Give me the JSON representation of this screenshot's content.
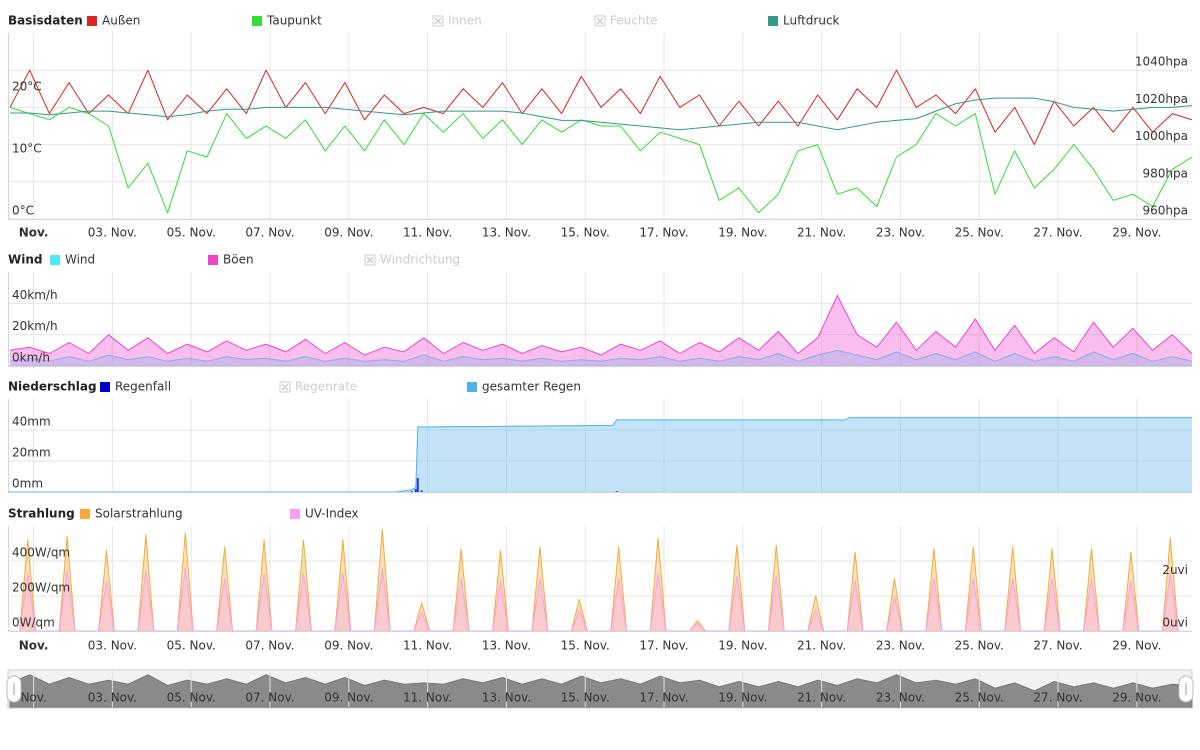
{
  "chart_data": [
    {
      "type": "line",
      "title": "Basisdaten",
      "x": [
        0.4,
        0.9,
        1.4,
        1.9,
        2.4,
        2.9,
        3.4,
        3.9,
        4.4,
        4.9,
        5.4,
        5.9,
        6.4,
        6.9,
        7.4,
        7.9,
        8.4,
        8.9,
        9.4,
        9.9,
        10.4,
        10.9,
        11.4,
        11.9,
        12.4,
        12.9,
        13.4,
        13.9,
        14.4,
        14.9,
        15.4,
        15.9,
        16.4,
        16.9,
        17.4,
        17.9,
        18.4,
        18.9,
        19.4,
        19.9,
        20.4,
        20.9,
        21.4,
        21.9,
        22.4,
        22.9,
        23.4,
        23.9,
        24.4,
        24.9,
        25.4,
        25.9,
        26.4,
        26.9,
        27.4,
        27.9,
        28.4,
        28.9,
        29.4,
        29.9,
        30.4
      ],
      "xlim": [
        0.35,
        30.4
      ],
      "xticks": [
        {
          "value": 1,
          "label": "Nov."
        },
        {
          "value": 3,
          "label": "03. Nov."
        },
        {
          "value": 5,
          "label": "05. Nov."
        },
        {
          "value": 7,
          "label": "07. Nov."
        },
        {
          "value": 9,
          "label": "09. Nov."
        },
        {
          "value": 11,
          "label": "11. Nov."
        },
        {
          "value": 13,
          "label": "13. Nov."
        },
        {
          "value": 15,
          "label": "15. Nov."
        },
        {
          "value": 17,
          "label": "17. Nov."
        },
        {
          "value": 19,
          "label": "19. Nov."
        },
        {
          "value": 21,
          "label": "21. Nov."
        },
        {
          "value": 23,
          "label": "23. Nov."
        },
        {
          "value": 25,
          "label": "25. Nov."
        },
        {
          "value": 27,
          "label": "27. Nov."
        },
        {
          "value": 29,
          "label": "29. Nov."
        }
      ],
      "ylim": [
        0,
        30
      ],
      "yticks": [
        {
          "value": 0,
          "label": "0°C"
        },
        {
          "value": 10,
          "label": "10°C"
        },
        {
          "value": 20,
          "label": "20°C"
        }
      ],
      "y2lim": [
        960,
        1060
      ],
      "y2ticks": [
        {
          "value": 960,
          "label": "960hpa"
        },
        {
          "value": 980,
          "label": "980hpa"
        },
        {
          "value": 1000,
          "label": "1000hpa"
        },
        {
          "value": 1020,
          "label": "1020hpa"
        },
        {
          "value": 1040,
          "label": "1040hpa"
        }
      ],
      "grid": "y2",
      "series": [
        {
          "name": "Außen",
          "color": "#dd2222",
          "values": [
            18,
            24,
            17,
            22,
            17,
            20,
            17,
            24,
            16,
            20,
            17,
            21,
            17,
            24,
            18,
            22,
            17,
            22,
            16,
            20,
            17,
            18,
            17,
            21,
            18,
            22,
            17,
            21,
            17,
            23,
            18,
            21,
            17,
            23,
            18,
            20,
            15,
            19,
            15,
            19,
            15,
            20,
            16,
            21,
            18,
            24,
            18,
            20,
            17,
            21,
            14,
            18,
            12,
            19,
            15,
            18,
            14,
            18,
            14,
            17,
            16
          ]
        },
        {
          "name": "Taupunkt",
          "color": "#33dd33",
          "values": [
            18,
            17,
            16,
            18,
            17,
            15,
            5,
            9,
            1,
            11,
            10,
            17,
            13,
            15,
            13,
            16,
            11,
            15,
            11,
            16,
            12,
            17,
            14,
            17,
            13,
            16,
            12,
            16,
            14,
            16,
            15,
            15,
            11,
            14,
            13,
            12,
            3,
            5,
            1,
            4,
            11,
            12,
            4,
            5,
            2,
            10,
            12,
            17,
            15,
            17,
            4,
            11,
            5,
            8,
            12,
            8,
            3,
            4,
            2,
            8,
            10
          ]
        },
        {
          "name": "Innen",
          "color": "#cccccc",
          "visible": false
        },
        {
          "name": "Feuchte",
          "color": "#cccccc",
          "visible": false
        },
        {
          "name": "Luftdruck",
          "color": "#339988",
          "axis": "y2",
          "values": [
            1017,
            1017,
            1016,
            1017,
            1018,
            1018,
            1017,
            1016,
            1015,
            1016,
            1018,
            1019,
            1019,
            1020,
            1020,
            1020,
            1020,
            1019,
            1018,
            1017,
            1016,
            1017,
            1018,
            1018,
            1018,
            1018,
            1017,
            1015,
            1013,
            1013,
            1012,
            1011,
            1010,
            1009,
            1008,
            1009,
            1010,
            1011,
            1012,
            1012,
            1012,
            1010,
            1008,
            1010,
            1012,
            1013,
            1014,
            1018,
            1022,
            1024,
            1025,
            1025,
            1025,
            1023,
            1020,
            1019,
            1018,
            1019,
            1020,
            1020,
            1021
          ]
        }
      ]
    },
    {
      "type": "area",
      "title": "Wind",
      "x": [
        0.4,
        0.9,
        1.4,
        1.9,
        2.4,
        2.9,
        3.4,
        3.9,
        4.4,
        4.9,
        5.4,
        5.9,
        6.4,
        6.9,
        7.4,
        7.9,
        8.4,
        8.9,
        9.4,
        9.9,
        10.4,
        10.9,
        11.4,
        11.9,
        12.4,
        12.9,
        13.4,
        13.9,
        14.4,
        14.9,
        15.4,
        15.9,
        16.4,
        16.9,
        17.4,
        17.9,
        18.4,
        18.9,
        19.4,
        19.9,
        20.4,
        20.9,
        21.4,
        21.9,
        22.4,
        22.9,
        23.4,
        23.9,
        24.4,
        24.9,
        25.4,
        25.9,
        26.4,
        26.9,
        27.4,
        27.9,
        28.4,
        28.9,
        29.4,
        29.9,
        30.4
      ],
      "xlim": [
        0.35,
        30.4
      ],
      "xticks": [
        1,
        3,
        5,
        7,
        9,
        11,
        13,
        15,
        17,
        19,
        21,
        23,
        25,
        27,
        29
      ],
      "ylim": [
        0,
        60
      ],
      "yticks": [
        {
          "value": 0,
          "label": "0km/h"
        },
        {
          "value": 20,
          "label": "20km/h"
        },
        {
          "value": 40,
          "label": "40km/h"
        }
      ],
      "grid": "y",
      "series": [
        {
          "name": "Wind",
          "color": "#55e5f5",
          "values": [
            3,
            5,
            3,
            6,
            3,
            7,
            4,
            6,
            3,
            5,
            3,
            6,
            4,
            5,
            3,
            6,
            3,
            5,
            3,
            4,
            3,
            7,
            3,
            6,
            4,
            5,
            3,
            5,
            3,
            4,
            3,
            5,
            4,
            6,
            3,
            5,
            3,
            6,
            4,
            8,
            3,
            7,
            10,
            7,
            4,
            9,
            4,
            8,
            4,
            9,
            3,
            8,
            3,
            6,
            3,
            9,
            4,
            8,
            3,
            6,
            3
          ]
        },
        {
          "name": "Böen",
          "color": "#ee44cc",
          "values": [
            10,
            12,
            8,
            15,
            8,
            20,
            10,
            18,
            8,
            14,
            9,
            16,
            10,
            14,
            9,
            17,
            8,
            15,
            7,
            12,
            9,
            18,
            8,
            15,
            10,
            14,
            8,
            13,
            9,
            12,
            7,
            14,
            10,
            16,
            8,
            15,
            9,
            18,
            10,
            22,
            8,
            18,
            45,
            20,
            12,
            28,
            10,
            22,
            12,
            30,
            10,
            26,
            8,
            18,
            9,
            28,
            12,
            24,
            10,
            20,
            8
          ]
        },
        {
          "name": "Windrichtung",
          "color": "#cccccc",
          "visible": false
        }
      ]
    },
    {
      "type": "area",
      "title": "Niederschlag",
      "x": [
        0.35,
        10.2,
        10.6,
        10.7,
        10.75,
        10.85,
        11.0,
        15.7,
        15.8,
        21.6,
        21.7,
        30.4
      ],
      "xlim": [
        0.35,
        30.4
      ],
      "xticks": [
        1,
        3,
        5,
        7,
        9,
        11,
        13,
        15,
        17,
        19,
        21,
        23,
        25,
        27,
        29
      ],
      "ylim": [
        0,
        60
      ],
      "yticks": [
        {
          "value": 0,
          "label": "0mm"
        },
        {
          "value": 20,
          "label": "20mm"
        },
        {
          "value": 40,
          "label": "40mm"
        }
      ],
      "grid": "y",
      "series": [
        {
          "name": "Regenfall",
          "color": "#0000cc",
          "type": "column",
          "values": [
            0,
            0,
            0.5,
            2,
            9,
            1,
            0,
            0,
            0.5,
            0,
            0,
            0
          ]
        },
        {
          "name": "Regenrate",
          "color": "#cccccc",
          "visible": false
        },
        {
          "name": "gesamter Regen",
          "color": "#4fb0ea",
          "values": [
            0,
            0,
            1.5,
            3,
            42,
            42,
            42,
            43,
            46.5,
            46.5,
            48,
            48
          ]
        }
      ]
    },
    {
      "type": "area",
      "title": "Strahlung",
      "x": [
        0.65,
        0.85,
        1.05,
        1.65,
        1.85,
        2.05,
        2.65,
        2.85,
        3.05,
        3.65,
        3.85,
        4.05,
        4.65,
        4.85,
        5.05,
        5.65,
        5.85,
        6.05,
        6.65,
        6.85,
        7.05,
        7.65,
        7.85,
        8.05,
        8.65,
        8.85,
        9.05,
        9.65,
        9.85,
        10.05,
        10.65,
        10.85,
        11.05,
        11.65,
        11.85,
        12.05,
        12.65,
        12.85,
        13.05,
        13.65,
        13.85,
        14.05,
        14.65,
        14.85,
        15.05,
        15.65,
        15.85,
        16.05,
        16.65,
        16.85,
        17.05,
        17.65,
        17.85,
        18.05,
        18.65,
        18.85,
        19.05,
        19.65,
        19.85,
        20.05,
        20.65,
        20.85,
        21.05,
        21.65,
        21.85,
        22.05,
        22.65,
        22.85,
        23.05,
        23.65,
        23.85,
        24.05,
        24.65,
        24.85,
        25.05,
        25.65,
        25.85,
        26.05,
        26.65,
        26.85,
        27.05,
        27.65,
        27.85,
        28.05,
        28.65,
        28.85,
        29.05,
        29.65,
        29.85,
        30.05
      ],
      "xlim": [
        0.35,
        30.4
      ],
      "xticks": [
        {
          "value": 1,
          "label": "Nov."
        },
        {
          "value": 3,
          "label": "03. Nov."
        },
        {
          "value": 5,
          "label": "05. Nov."
        },
        {
          "value": 7,
          "label": "07. Nov."
        },
        {
          "value": 9,
          "label": "09. Nov."
        },
        {
          "value": 11,
          "label": "11. Nov."
        },
        {
          "value": 13,
          "label": "13. Nov."
        },
        {
          "value": 15,
          "label": "15. Nov."
        },
        {
          "value": 17,
          "label": "17. Nov."
        },
        {
          "value": 19,
          "label": "19. Nov."
        },
        {
          "value": 21,
          "label": "21. Nov."
        },
        {
          "value": 23,
          "label": "23. Nov."
        },
        {
          "value": 25,
          "label": "25. Nov."
        },
        {
          "value": 27,
          "label": "27. Nov."
        },
        {
          "value": 29,
          "label": "29. Nov."
        }
      ],
      "ylim": [
        0,
        600
      ],
      "yticks": [
        {
          "value": 0,
          "label": "0W/qm"
        },
        {
          "value": 200,
          "label": "200W/qm"
        },
        {
          "value": 400,
          "label": "400W/qm"
        }
      ],
      "y2lim": [
        0,
        4
      ],
      "y2ticks": [
        {
          "value": 0,
          "label": "0uvi"
        },
        {
          "value": 2,
          "label": "2uvi"
        }
      ],
      "grid": "y",
      "series": [
        {
          "name": "Solarstrahlung",
          "color": "#f7a935",
          "values": [
            0,
            520,
            0,
            0,
            540,
            0,
            0,
            460,
            0,
            0,
            550,
            0,
            0,
            560,
            0,
            0,
            480,
            0,
            0,
            520,
            0,
            0,
            520,
            0,
            0,
            520,
            0,
            0,
            580,
            0,
            0,
            160,
            0,
            0,
            470,
            0,
            0,
            460,
            0,
            0,
            480,
            0,
            0,
            180,
            0,
            0,
            480,
            0,
            0,
            530,
            0,
            0,
            60,
            0,
            0,
            490,
            0,
            0,
            490,
            0,
            0,
            200,
            0,
            0,
            450,
            0,
            0,
            300,
            0,
            0,
            470,
            0,
            0,
            480,
            0,
            0,
            480,
            0,
            0,
            470,
            0,
            0,
            470,
            0,
            0,
            450,
            0,
            0,
            530,
            0
          ]
        },
        {
          "name": "UV-Index",
          "color": "#f5a0f0",
          "axis": "y2",
          "values": [
            0,
            2.2,
            0,
            0,
            2.3,
            0,
            0,
            1.9,
            0,
            0,
            2.3,
            0,
            0,
            2.4,
            0,
            0,
            2.0,
            0,
            0,
            2.2,
            0,
            0,
            2.2,
            0,
            0,
            2.2,
            0,
            0,
            2.4,
            0,
            0,
            0.7,
            0,
            0,
            2.0,
            0,
            0,
            1.9,
            0,
            0,
            2.0,
            0,
            0,
            0.8,
            0,
            0,
            2.0,
            0,
            0,
            2.2,
            0,
            0,
            0.3,
            0,
            0,
            2.1,
            0,
            0,
            2.1,
            0,
            0,
            0.8,
            0,
            0,
            1.9,
            0,
            0,
            1.3,
            0,
            0,
            2.0,
            0,
            0,
            2.0,
            0,
            0,
            2.0,
            0,
            0,
            2.0,
            0,
            0,
            2.0,
            0,
            0,
            1.9,
            0,
            0,
            2.2,
            0
          ]
        }
      ]
    }
  ]
}
